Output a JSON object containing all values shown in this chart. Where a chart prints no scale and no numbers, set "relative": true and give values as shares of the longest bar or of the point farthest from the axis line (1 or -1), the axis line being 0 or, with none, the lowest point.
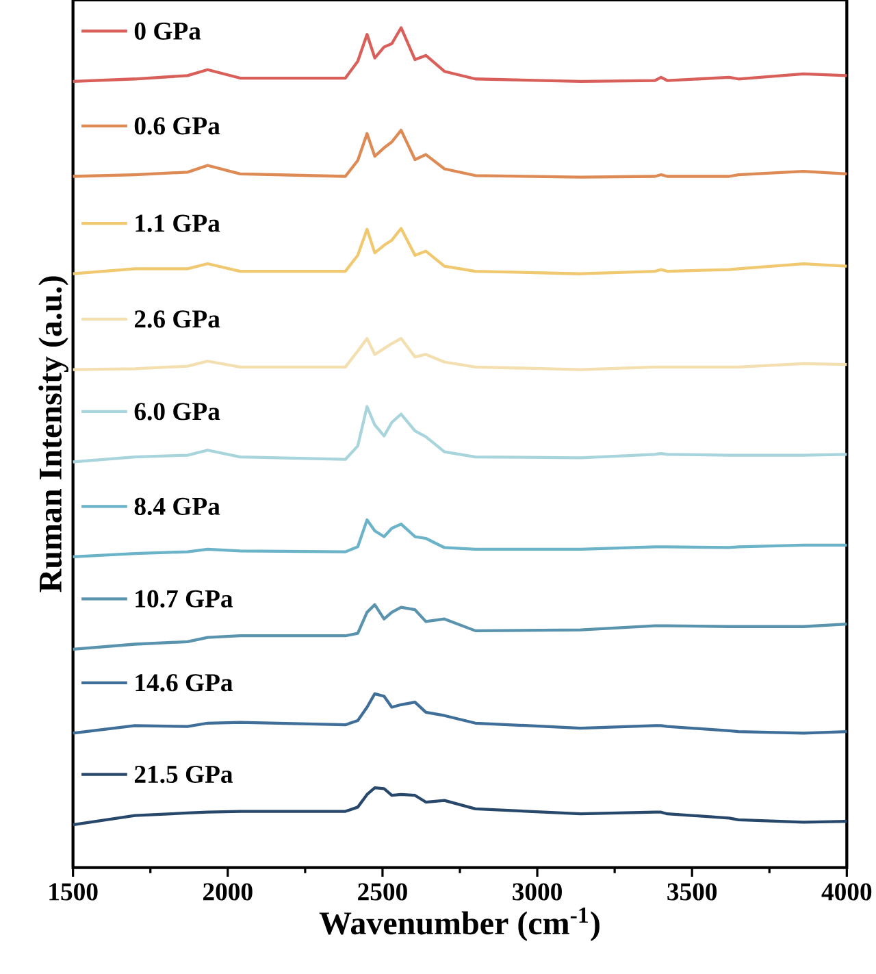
{
  "chart_data": {
    "type": "line",
    "relative": true,
    "legend": "top left",
    "xlabel": "Wavenumber (cm$^{-1}$)",
    "ylabel": "Ruman Intensity (a.u.)",
    "xlim": [
      1500,
      4000
    ],
    "xticks": [
      1500,
      2000,
      2500,
      3000,
      3500,
      4000
    ],
    "x": [
      1500,
      1700,
      1870,
      1935,
      2040,
      2380,
      2420,
      2450,
      2475,
      2505,
      2530,
      2560,
      2605,
      2640,
      2700,
      2800,
      3140,
      3380,
      3400,
      3420,
      3620,
      3650,
      3860,
      4000
    ],
    "series": [
      {
        "name": "0 GPa",
        "color": "#d9605a",
        "values": [
          0.936,
          0.939,
          0.943,
          0.95,
          0.94,
          0.94,
          0.96,
          0.992,
          0.964,
          0.977,
          0.981,
          1.0,
          0.962,
          0.967,
          0.948,
          0.939,
          0.936,
          0.937,
          0.941,
          0.937,
          0.941,
          0.939,
          0.945,
          0.943
        ]
      },
      {
        "name": "0.6 GPa",
        "color": "#dd8a55",
        "values": [
          0.823,
          0.825,
          0.828,
          0.836,
          0.826,
          0.823,
          0.842,
          0.874,
          0.847,
          0.857,
          0.864,
          0.878,
          0.843,
          0.849,
          0.832,
          0.824,
          0.822,
          0.823,
          0.825,
          0.823,
          0.823,
          0.825,
          0.829,
          0.826
        ]
      },
      {
        "name": "1.1 GPa",
        "color": "#f0c870",
        "values": [
          0.707,
          0.713,
          0.713,
          0.719,
          0.71,
          0.71,
          0.729,
          0.76,
          0.732,
          0.741,
          0.747,
          0.761,
          0.729,
          0.734,
          0.716,
          0.71,
          0.707,
          0.71,
          0.712,
          0.71,
          0.712,
          0.713,
          0.719,
          0.716
        ]
      },
      {
        "name": "2.6 GPa",
        "color": "#f3dfb0",
        "values": [
          0.593,
          0.594,
          0.597,
          0.603,
          0.596,
          0.596,
          0.615,
          0.63,
          0.611,
          0.618,
          0.624,
          0.63,
          0.608,
          0.611,
          0.602,
          0.596,
          0.593,
          0.596,
          0.596,
          0.596,
          0.596,
          0.596,
          0.6,
          0.599
        ]
      },
      {
        "name": "6.0 GPa",
        "color": "#a8d4dc",
        "values": [
          0.483,
          0.489,
          0.491,
          0.497,
          0.489,
          0.486,
          0.502,
          0.549,
          0.527,
          0.514,
          0.53,
          0.54,
          0.52,
          0.513,
          0.495,
          0.489,
          0.488,
          0.492,
          0.493,
          0.492,
          0.491,
          0.491,
          0.491,
          0.492
        ]
      },
      {
        "name": "8.4 GPa",
        "color": "#6bb3c8",
        "values": [
          0.37,
          0.374,
          0.376,
          0.379,
          0.377,
          0.376,
          0.382,
          0.414,
          0.401,
          0.394,
          0.404,
          0.409,
          0.394,
          0.392,
          0.381,
          0.379,
          0.379,
          0.382,
          0.382,
          0.382,
          0.381,
          0.382,
          0.384,
          0.384
        ]
      },
      {
        "name": "10.7 GPa",
        "color": "#5a93ad",
        "values": [
          0.26,
          0.266,
          0.269,
          0.274,
          0.276,
          0.276,
          0.279,
          0.304,
          0.313,
          0.296,
          0.304,
          0.31,
          0.307,
          0.293,
          0.296,
          0.282,
          0.283,
          0.288,
          0.288,
          0.288,
          0.287,
          0.287,
          0.287,
          0.29
        ]
      },
      {
        "name": "14.6 GPa",
        "color": "#3f6e98",
        "values": [
          0.16,
          0.169,
          0.168,
          0.172,
          0.173,
          0.17,
          0.175,
          0.191,
          0.207,
          0.204,
          0.191,
          0.194,
          0.197,
          0.185,
          0.181,
          0.172,
          0.166,
          0.169,
          0.169,
          0.168,
          0.163,
          0.162,
          0.16,
          0.162
        ]
      },
      {
        "name": "21.5 GPa",
        "color": "#27476b",
        "values": [
          0.051,
          0.062,
          0.065,
          0.066,
          0.067,
          0.067,
          0.072,
          0.087,
          0.095,
          0.094,
          0.086,
          0.087,
          0.086,
          0.078,
          0.08,
          0.07,
          0.064,
          0.066,
          0.066,
          0.064,
          0.059,
          0.057,
          0.054,
          0.055
        ]
      }
    ]
  }
}
